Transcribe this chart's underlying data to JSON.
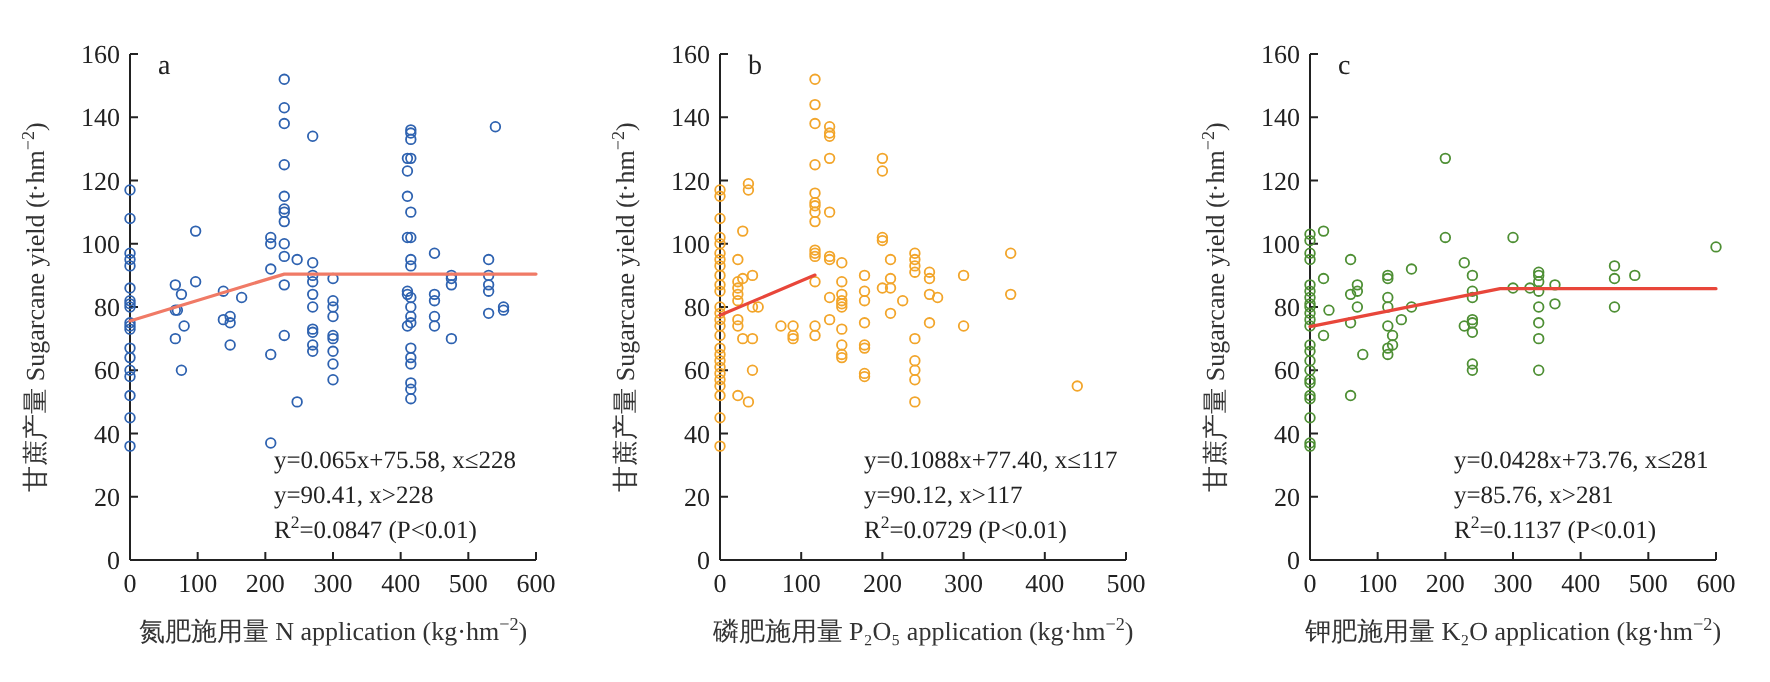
{
  "chart_data": [
    {
      "type": "scatter",
      "title": "a",
      "xlabel": "氮肥施用量 N application (kg·hm$^{−2}$)",
      "ylabel": "甘蔗产量 Sugarcane yield (t·hm$^{−2}$)",
      "xlim": [
        0,
        600
      ],
      "xticks": [
        0,
        100,
        200,
        300,
        400,
        500,
        600
      ],
      "ylim": [
        0,
        160
      ],
      "yticks": [
        0,
        20,
        40,
        60,
        80,
        100,
        120,
        140,
        160
      ],
      "annotations": [
        "y=0.065x+75.58, x≤228",
        "y=90.41, x>228",
        "R$^{2}$=0.0847  (P<0.01)"
      ],
      "series": [
        {
          "marker": "circle",
          "color": "#2e62b0",
          "x": [
            0,
            0,
            0,
            0,
            0,
            0,
            0,
            0,
            0,
            0,
            0,
            0,
            0,
            0,
            0,
            0,
            0,
            0,
            0,
            67,
            67,
            67,
            76,
            76,
            70,
            80,
            97,
            97,
            138,
            138,
            148,
            148,
            148,
            165,
            208,
            208,
            208,
            208,
            208,
            228,
            228,
            228,
            228,
            228,
            228,
            228,
            228,
            228,
            228,
            228,
            228,
            247,
            247,
            270,
            270,
            270,
            270,
            270,
            270,
            270,
            270,
            270,
            270,
            300,
            300,
            300,
            300,
            300,
            300,
            300,
            300,
            300,
            410,
            410,
            410,
            410,
            410,
            410,
            410,
            415,
            415,
            415,
            415,
            415,
            415,
            415,
            415,
            415,
            415,
            415,
            415,
            415,
            415,
            415,
            415,
            415,
            415,
            450,
            450,
            450,
            450,
            450,
            475,
            475,
            475,
            475,
            530,
            530,
            530,
            530,
            530,
            540,
            552,
            552
          ],
          "values": [
            117,
            108,
            97,
            95,
            93,
            86,
            82,
            81,
            80,
            75,
            74,
            73,
            67,
            64,
            60,
            58,
            52,
            45,
            36,
            87,
            79,
            70,
            84,
            60,
            79,
            74,
            104,
            88,
            85,
            76,
            77,
            75,
            68,
            83,
            102,
            100,
            92,
            65,
            37,
            152,
            143,
            138,
            125,
            115,
            111,
            110,
            107,
            100,
            96,
            87,
            71,
            95,
            50,
            134,
            94,
            90,
            88,
            84,
            80,
            73,
            72,
            68,
            66,
            89,
            82,
            80,
            77,
            71,
            70,
            66,
            62,
            57,
            127,
            123,
            115,
            102,
            85,
            84,
            74,
            136,
            135,
            133,
            127,
            110,
            102,
            95,
            93,
            83,
            80,
            77,
            75,
            67,
            64,
            62,
            56,
            54,
            51,
            97,
            84,
            82,
            77,
            74,
            90,
            89,
            87,
            70,
            95,
            90,
            87,
            85,
            78,
            137,
            80,
            79
          ]
        },
        {
          "type": "line",
          "color": "#f07a66",
          "x": [
            0,
            228,
            600
          ],
          "values": [
            75.6,
            90.4,
            90.4
          ]
        }
      ]
    },
    {
      "type": "scatter",
      "title": "b",
      "xlabel": "磷肥施用量 P₂O₅ application (kg·hm$^{−2}$)",
      "ylabel": "甘蔗产量 Sugarcane yield (t·hm$^{−2}$)",
      "xlim": [
        0,
        500
      ],
      "xticks": [
        0,
        100,
        200,
        300,
        400,
        500
      ],
      "ylim": [
        0,
        160
      ],
      "yticks": [
        0,
        20,
        40,
        60,
        80,
        100,
        120,
        140,
        160
      ],
      "annotations": [
        "y=0.1088x+77.40, x≤117",
        "y=90.12, x>117",
        "R$^{2}$=0.0729  (P<0.01)"
      ],
      "series": [
        {
          "marker": "circle",
          "color": "#f2a52a",
          "x": [
            0,
            0,
            0,
            0,
            0,
            0,
            0,
            0,
            0,
            0,
            0,
            0,
            0,
            0,
            0,
            0,
            0,
            0,
            0,
            0,
            0,
            0,
            0,
            0,
            0,
            0,
            22,
            22,
            22,
            22,
            22,
            22,
            22,
            22,
            28,
            28,
            28,
            35,
            35,
            35,
            40,
            40,
            40,
            40,
            47,
            75,
            90,
            90,
            90,
            117,
            117,
            117,
            117,
            117,
            117,
            117,
            117,
            117,
            117,
            117,
            117,
            117,
            117,
            117,
            135,
            135,
            135,
            135,
            135,
            135,
            135,
            135,
            135,
            150,
            150,
            150,
            150,
            150,
            150,
            150,
            150,
            150,
            150,
            178,
            178,
            178,
            178,
            178,
            178,
            178,
            178,
            200,
            200,
            200,
            200,
            200,
            210,
            210,
            210,
            210,
            225,
            240,
            240,
            240,
            240,
            240,
            240,
            240,
            240,
            240,
            258,
            258,
            258,
            258,
            268,
            300,
            300,
            358,
            358,
            440
          ],
          "values": [
            117,
            115,
            108,
            102,
            100,
            97,
            95,
            93,
            90,
            87,
            85,
            80,
            78,
            76,
            74,
            71,
            67,
            65,
            63,
            61,
            59,
            57,
            55,
            52,
            45,
            36,
            95,
            88,
            86,
            84,
            82,
            76,
            74,
            52,
            104,
            89,
            70,
            119,
            117,
            50,
            90,
            80,
            70,
            60,
            80,
            74,
            74,
            71,
            70,
            152,
            144,
            138,
            125,
            116,
            113,
            112,
            110,
            107,
            98,
            97,
            96,
            88,
            74,
            71,
            137,
            135,
            134,
            127,
            110,
            96,
            95,
            83,
            76,
            94,
            88,
            84,
            82,
            81,
            80,
            73,
            68,
            65,
            64,
            90,
            85,
            82,
            75,
            68,
            67,
            59,
            58,
            127,
            123,
            102,
            101,
            86,
            95,
            89,
            86,
            78,
            82,
            97,
            95,
            93,
            91,
            70,
            63,
            60,
            57,
            50,
            91,
            89,
            84,
            75,
            83,
            90,
            74,
            97,
            84,
            55
          ]
        },
        {
          "type": "line",
          "color": "#e8463a",
          "x": [
            0,
            117
          ],
          "values": [
            77.4,
            90.1
          ]
        }
      ]
    },
    {
      "type": "scatter",
      "title": "c",
      "xlabel": "钾肥施用量 K₂O application (kg·hm$^{−2}$)",
      "ylabel": "甘蔗产量 Sugarcane yield (t·hm$^{−2}$)",
      "xlim": [
        0,
        600
      ],
      "xticks": [
        0,
        100,
        200,
        300,
        400,
        500,
        600
      ],
      "ylim": [
        0,
        160
      ],
      "yticks": [
        0,
        20,
        40,
        60,
        80,
        100,
        120,
        140,
        160
      ],
      "annotations": [
        "y=0.0428x+73.76, x≤281",
        "y=85.76, x>281",
        "R$^{2}$=0.1137  (P<0.01)"
      ],
      "series": [
        {
          "marker": "circle",
          "color": "#4e8f34",
          "x": [
            0,
            0,
            0,
            0,
            0,
            0,
            0,
            0,
            0,
            0,
            0,
            0,
            0,
            0,
            0,
            0,
            0,
            0,
            0,
            0,
            0,
            0,
            0,
            20,
            20,
            20,
            28,
            60,
            60,
            60,
            60,
            70,
            70,
            70,
            78,
            115,
            115,
            115,
            115,
            115,
            115,
            115,
            122,
            122,
            135,
            150,
            150,
            200,
            200,
            228,
            228,
            240,
            240,
            240,
            240,
            240,
            240,
            240,
            240,
            300,
            300,
            325,
            338,
            338,
            338,
            338,
            338,
            338,
            338,
            338,
            362,
            362,
            450,
            450,
            450,
            480,
            600
          ],
          "values": [
            103,
            101,
            97,
            95,
            87,
            85,
            83,
            81,
            80,
            78,
            76,
            74,
            68,
            66,
            63,
            60,
            57,
            56,
            52,
            51,
            45,
            37,
            36,
            104,
            89,
            71,
            79,
            95,
            84,
            75,
            52,
            87,
            85,
            80,
            65,
            90,
            89,
            83,
            80,
            74,
            67,
            65,
            71,
            68,
            76,
            92,
            80,
            127,
            102,
            94,
            74,
            90,
            85,
            83,
            76,
            75,
            72,
            62,
            60,
            102,
            86,
            86,
            91,
            90,
            88,
            85,
            80,
            75,
            70,
            60,
            87,
            81,
            93,
            89,
            80,
            90,
            99
          ]
        },
        {
          "type": "line",
          "color": "#e8463a",
          "x": [
            0,
            281,
            600
          ],
          "values": [
            73.8,
            85.8,
            85.8
          ]
        }
      ]
    }
  ]
}
